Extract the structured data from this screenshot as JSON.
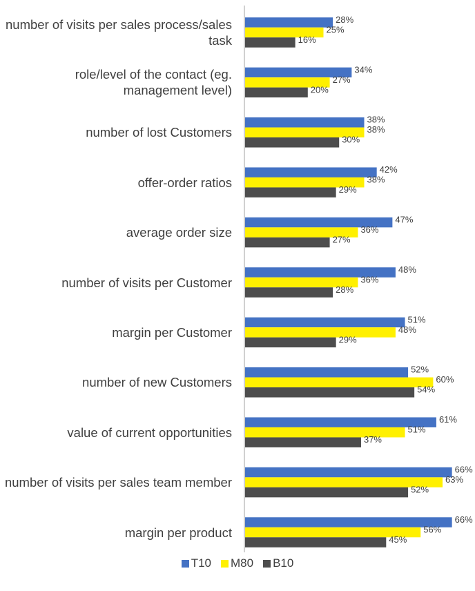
{
  "chart_data": {
    "type": "bar",
    "orientation": "horizontal",
    "categories": [
      "number of visits per sales process/sales task",
      "role/level of the contact (eg. management level)",
      "number of lost Customers",
      "offer-order ratios",
      "average order size",
      "number of visits per Customer",
      "margin per Customer",
      "number of new Customers",
      "value of current opportunities",
      "number of visits per sales team member",
      "margin per product"
    ],
    "series": [
      {
        "name": "T10",
        "color": "#4472c4",
        "values": [
          28,
          34,
          38,
          42,
          47,
          48,
          51,
          52,
          61,
          66,
          66
        ],
        "value_labels": [
          "28%",
          "34%",
          "38%",
          "42%",
          "47%",
          "48%",
          "51%",
          "52%",
          "61%",
          "66%",
          "66%"
        ]
      },
      {
        "name": "M80",
        "color": "#fff000",
        "values": [
          25,
          27,
          38,
          38,
          36,
          36,
          48,
          60,
          51,
          63,
          56
        ],
        "value_labels": [
          "25%",
          "27%",
          "38%",
          "38%",
          "36%",
          "36%",
          "48%",
          "60%",
          "51%",
          "63%",
          "56%"
        ]
      },
      {
        "name": "B10",
        "color": "#4d4d4d",
        "values": [
          16,
          20,
          30,
          29,
          27,
          28,
          29,
          54,
          37,
          52,
          45
        ],
        "value_labels": [
          "16%",
          "20%",
          "30%",
          "29%",
          "27%",
          "28%",
          "29%",
          "54%",
          "37%",
          "52%",
          "45%"
        ]
      }
    ],
    "legend": "bottom"
  }
}
